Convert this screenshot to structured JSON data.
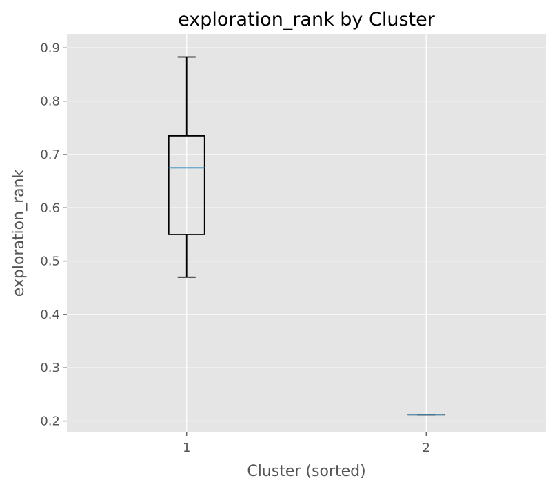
{
  "chart_data": {
    "type": "box",
    "title": "exploration_rank by Cluster",
    "xlabel": "Cluster (sorted)",
    "ylabel": "exploration_rank",
    "categories": [
      "1",
      "2"
    ],
    "ylim": [
      0.18,
      0.925
    ],
    "yticks": [
      0.2,
      0.3,
      0.4,
      0.5,
      0.6,
      0.7,
      0.8,
      0.9
    ],
    "ytick_labels": [
      "0.2",
      "0.3",
      "0.4",
      "0.5",
      "0.6",
      "0.7",
      "0.8",
      "0.9"
    ],
    "boxes": [
      {
        "category": "1",
        "whisker_low": 0.47,
        "q1": 0.55,
        "median": 0.675,
        "q3": 0.735,
        "whisker_high": 0.883
      },
      {
        "category": "2",
        "whisker_low": 0.212,
        "q1": 0.212,
        "median": 0.212,
        "q3": 0.212,
        "whisker_high": 0.212
      }
    ],
    "grid": true,
    "style": "ggplot",
    "colors": {
      "plot_background": "#e5e5e5",
      "grid": "#ffffff",
      "box_edge": "#000000",
      "median": "#348abd",
      "tick_label": "#555555"
    }
  }
}
